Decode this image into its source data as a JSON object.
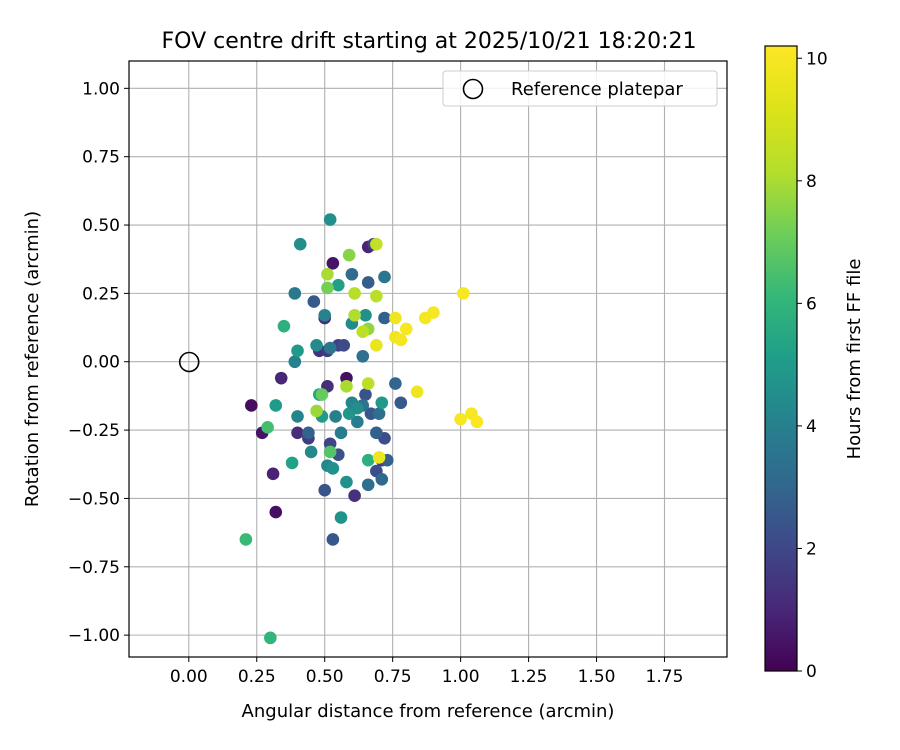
{
  "chart_data": {
    "type": "scatter",
    "title": "FOV centre drift starting at 2025/10/21 18:20:21",
    "xlabel": "Angular distance from reference (arcmin)",
    "ylabel": "Rotation from reference (arcmin)",
    "xlim": [
      -0.22,
      1.98
    ],
    "ylim": [
      -1.08,
      1.1
    ],
    "xticks": [
      0.0,
      0.25,
      0.5,
      0.75,
      1.0,
      1.25,
      1.5,
      1.75
    ],
    "xtick_labels": [
      "0.00",
      "0.25",
      "0.50",
      "0.75",
      "1.00",
      "1.25",
      "1.50",
      "1.75"
    ],
    "yticks": [
      -1.0,
      -0.75,
      -0.5,
      -0.25,
      0.0,
      0.25,
      0.5,
      0.75,
      1.0
    ],
    "ytick_labels": [
      "−1.00",
      "−0.75",
      "−0.50",
      "−0.25",
      "0.00",
      "0.25",
      "0.50",
      "0.75",
      "1.00"
    ],
    "grid": true,
    "legend": {
      "position": "top-right",
      "entries": [
        "Reference platepar"
      ]
    },
    "reference_point": {
      "x": 0.0,
      "y": 0.0,
      "label": "Reference platepar"
    },
    "colorbar": {
      "label": "Hours from first FF file",
      "colormap": "viridis",
      "range": [
        0,
        10.2
      ],
      "ticks": [
        0,
        2,
        4,
        6,
        8,
        10
      ],
      "tick_labels": [
        "0",
        "2",
        "4",
        "6",
        "8",
        "10"
      ]
    },
    "points": [
      {
        "x": 0.23,
        "y": -0.16,
        "h": 0.3
      },
      {
        "x": 0.27,
        "y": -0.26,
        "h": 0.5
      },
      {
        "x": 0.31,
        "y": -0.41,
        "h": 0.9
      },
      {
        "x": 0.32,
        "y": -0.55,
        "h": 0.4
      },
      {
        "x": 0.34,
        "y": -0.06,
        "h": 1.0
      },
      {
        "x": 0.4,
        "y": -0.26,
        "h": 1.2
      },
      {
        "x": 0.44,
        "y": -0.28,
        "h": 1.6
      },
      {
        "x": 0.48,
        "y": 0.04,
        "h": 1.3
      },
      {
        "x": 0.5,
        "y": 0.16,
        "h": 1.1
      },
      {
        "x": 0.51,
        "y": 0.04,
        "h": 1.5
      },
      {
        "x": 0.51,
        "y": -0.09,
        "h": 1.2
      },
      {
        "x": 0.53,
        "y": 0.36,
        "h": 0.5
      },
      {
        "x": 0.55,
        "y": 0.06,
        "h": 1.8
      },
      {
        "x": 0.58,
        "y": -0.06,
        "h": 0.4
      },
      {
        "x": 0.57,
        "y": 0.06,
        "h": 2.1
      },
      {
        "x": 0.61,
        "y": -0.49,
        "h": 1.3
      },
      {
        "x": 0.66,
        "y": 0.42,
        "h": 1.0
      },
      {
        "x": 0.68,
        "y": 0.43,
        "h": 1.9
      },
      {
        "x": 0.69,
        "y": -0.4,
        "h": 2.2
      },
      {
        "x": 0.71,
        "y": -0.36,
        "h": 1.7
      },
      {
        "x": 0.52,
        "y": -0.3,
        "h": 1.9
      },
      {
        "x": 0.55,
        "y": -0.34,
        "h": 2.3
      },
      {
        "x": 0.53,
        "y": -0.65,
        "h": 2.5
      },
      {
        "x": 0.5,
        "y": -0.47,
        "h": 2.4
      },
      {
        "x": 0.46,
        "y": 0.22,
        "h": 2.6
      },
      {
        "x": 0.44,
        "y": -0.26,
        "h": 2.9
      },
      {
        "x": 0.66,
        "y": 0.29,
        "h": 2.7
      },
      {
        "x": 0.72,
        "y": -0.28,
        "h": 2.2
      },
      {
        "x": 0.69,
        "y": -0.26,
        "h": 2.8
      },
      {
        "x": 0.67,
        "y": -0.19,
        "h": 2.5
      },
      {
        "x": 0.65,
        "y": -0.12,
        "h": 2.4
      },
      {
        "x": 0.72,
        "y": 0.16,
        "h": 2.8
      },
      {
        "x": 0.76,
        "y": -0.08,
        "h": 3.0
      },
      {
        "x": 0.78,
        "y": -0.15,
        "h": 2.6
      },
      {
        "x": 0.71,
        "y": -0.43,
        "h": 3.1
      },
      {
        "x": 0.73,
        "y": -0.36,
        "h": 2.9
      },
      {
        "x": 0.66,
        "y": -0.45,
        "h": 3.3
      },
      {
        "x": 0.64,
        "y": 0.02,
        "h": 3.4
      },
      {
        "x": 0.6,
        "y": 0.32,
        "h": 3.2
      },
      {
        "x": 0.72,
        "y": 0.31,
        "h": 3.6
      },
      {
        "x": 0.52,
        "y": 0.05,
        "h": 3.6
      },
      {
        "x": 0.56,
        "y": -0.26,
        "h": 3.8
      },
      {
        "x": 0.62,
        "y": -0.22,
        "h": 3.9
      },
      {
        "x": 0.64,
        "y": -0.16,
        "h": 3.5
      },
      {
        "x": 0.7,
        "y": -0.19,
        "h": 3.3
      },
      {
        "x": 0.39,
        "y": 0.25,
        "h": 3.7
      },
      {
        "x": 0.39,
        "y": 0.0,
        "h": 4.0
      },
      {
        "x": 0.4,
        "y": -0.2,
        "h": 4.2
      },
      {
        "x": 0.5,
        "y": 0.17,
        "h": 4.1
      },
      {
        "x": 0.51,
        "y": -0.38,
        "h": 4.3
      },
      {
        "x": 0.54,
        "y": -0.2,
        "h": 4.0
      },
      {
        "x": 0.47,
        "y": 0.06,
        "h": 4.4
      },
      {
        "x": 0.45,
        "y": -0.33,
        "h": 4.3
      },
      {
        "x": 0.52,
        "y": 0.52,
        "h": 4.5
      },
      {
        "x": 0.41,
        "y": 0.43,
        "h": 4.5
      },
      {
        "x": 0.53,
        "y": -0.39,
        "h": 4.6
      },
      {
        "x": 0.56,
        "y": -0.57,
        "h": 4.7
      },
      {
        "x": 0.58,
        "y": -0.44,
        "h": 4.6
      },
      {
        "x": 0.59,
        "y": -0.19,
        "h": 4.8
      },
      {
        "x": 0.6,
        "y": 0.14,
        "h": 4.4
      },
      {
        "x": 0.65,
        "y": 0.17,
        "h": 4.6
      },
      {
        "x": 0.71,
        "y": -0.15,
        "h": 4.9
      },
      {
        "x": 0.6,
        "y": -0.15,
        "h": 4.2
      },
      {
        "x": 0.62,
        "y": -0.17,
        "h": 4.5
      },
      {
        "x": 0.49,
        "y": -0.2,
        "h": 5.0
      },
      {
        "x": 0.4,
        "y": 0.04,
        "h": 4.9
      },
      {
        "x": 0.32,
        "y": -0.16,
        "h": 5.0
      },
      {
        "x": 0.38,
        "y": -0.37,
        "h": 5.3
      },
      {
        "x": 0.48,
        "y": -0.12,
        "h": 5.3
      },
      {
        "x": 0.55,
        "y": 0.28,
        "h": 5.2
      },
      {
        "x": 0.66,
        "y": -0.36,
        "h": 5.8
      },
      {
        "x": 0.35,
        "y": 0.13,
        "h": 5.8
      },
      {
        "x": 0.29,
        "y": -0.24,
        "h": 6.4
      },
      {
        "x": 0.21,
        "y": -0.65,
        "h": 6.2
      },
      {
        "x": 0.3,
        "y": -1.01,
        "h": 6.0
      },
      {
        "x": 0.52,
        "y": -0.33,
        "h": 6.7
      },
      {
        "x": 0.49,
        "y": -0.12,
        "h": 7.0
      },
      {
        "x": 0.51,
        "y": 0.27,
        "h": 7.2
      },
      {
        "x": 0.59,
        "y": 0.39,
        "h": 7.5
      },
      {
        "x": 0.66,
        "y": 0.12,
        "h": 7.6
      },
      {
        "x": 0.47,
        "y": -0.18,
        "h": 7.8
      },
      {
        "x": 0.51,
        "y": 0.32,
        "h": 8.0
      },
      {
        "x": 0.58,
        "y": -0.09,
        "h": 8.0
      },
      {
        "x": 0.61,
        "y": 0.25,
        "h": 8.2
      },
      {
        "x": 0.61,
        "y": 0.17,
        "h": 8.1
      },
      {
        "x": 0.64,
        "y": 0.11,
        "h": 8.4
      },
      {
        "x": 0.69,
        "y": 0.24,
        "h": 8.3
      },
      {
        "x": 0.66,
        "y": -0.08,
        "h": 8.4
      },
      {
        "x": 0.69,
        "y": 0.43,
        "h": 8.5
      },
      {
        "x": 0.69,
        "y": 0.06,
        "h": 9.6
      },
      {
        "x": 0.7,
        "y": -0.35,
        "h": 9.7
      },
      {
        "x": 0.76,
        "y": 0.16,
        "h": 9.8
      },
      {
        "x": 0.76,
        "y": 0.09,
        "h": 9.8
      },
      {
        "x": 0.78,
        "y": 0.08,
        "h": 9.9
      },
      {
        "x": 0.8,
        "y": 0.12,
        "h": 10.0
      },
      {
        "x": 0.84,
        "y": -0.11,
        "h": 9.7
      },
      {
        "x": 0.87,
        "y": 0.16,
        "h": 9.9
      },
      {
        "x": 0.9,
        "y": 0.18,
        "h": 10.0
      },
      {
        "x": 1.0,
        "y": -0.21,
        "h": 10.0
      },
      {
        "x": 1.01,
        "y": 0.25,
        "h": 10.0
      },
      {
        "x": 1.04,
        "y": -0.19,
        "h": 10.0
      },
      {
        "x": 1.06,
        "y": -0.22,
        "h": 10.1
      }
    ]
  }
}
